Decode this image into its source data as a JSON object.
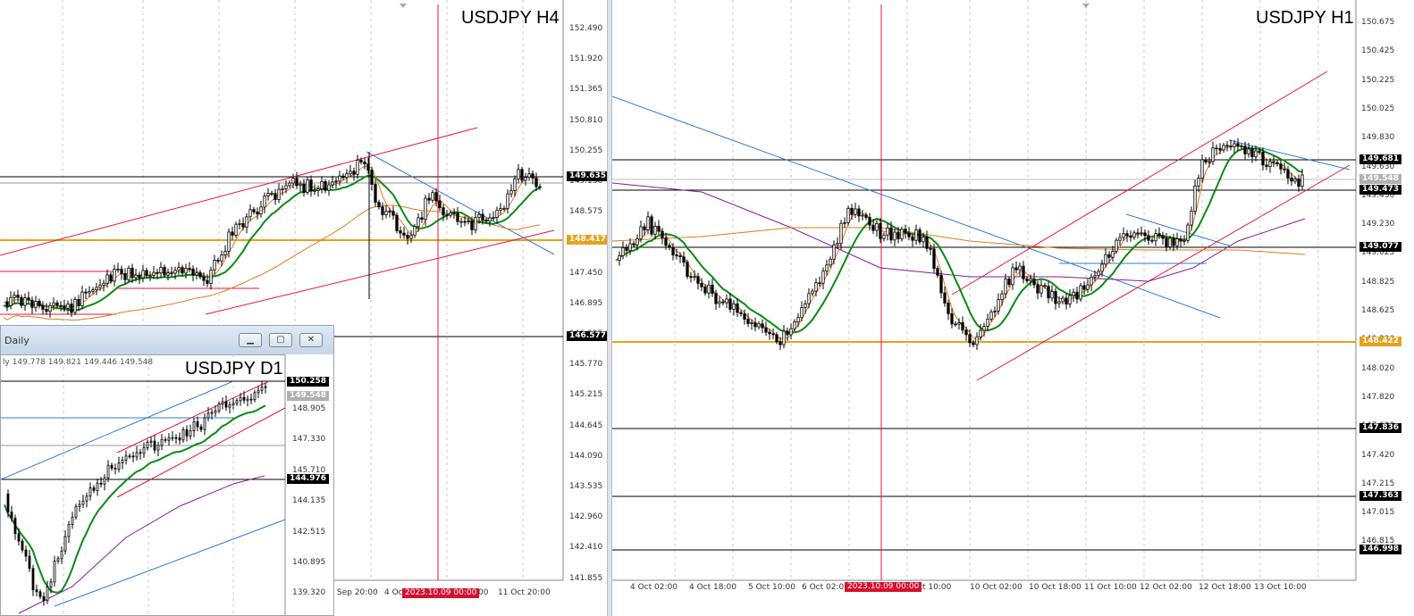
{
  "left_chart": {
    "title": "USDJPY H4",
    "price_labels": [
      "152.490",
      "151.920",
      "151.365",
      "150.810",
      "150.255",
      "149.130",
      "148.575",
      "148.000",
      "147.450",
      "146.895",
      "146.325",
      "145.770",
      "145.215",
      "144.645",
      "144.090",
      "143.535",
      "142.960",
      "142.410",
      "141.855"
    ],
    "tags": [
      {
        "text": "149.635",
        "style": "black"
      },
      {
        "text": "148.417",
        "style": "gold"
      },
      {
        "text": "146.577",
        "style": "black"
      }
    ],
    "time_labels": [
      "Sep 20:00",
      "4 Oct",
      "00",
      "11 Oct 20:00"
    ],
    "cursor_tag": "2023.10.09 00:00"
  },
  "right_chart": {
    "title": "USDJPY H1",
    "price_labels": [
      "150.675",
      "150.425",
      "150.225",
      "150.025",
      "149.830",
      "149.630",
      "149.430",
      "149.230",
      "149.025",
      "148.825",
      "148.625",
      "148.220",
      "148.020",
      "147.820",
      "147.620",
      "147.420",
      "147.215",
      "147.015",
      "146.815"
    ],
    "tags": [
      {
        "text": "149.681",
        "style": "black"
      },
      {
        "text": "149.548",
        "style": "grey"
      },
      {
        "text": "149.473",
        "style": "black"
      },
      {
        "text": "149.077",
        "style": "black"
      },
      {
        "text": "148.422",
        "style": "gold"
      },
      {
        "text": "147.836",
        "style": "black"
      },
      {
        "text": "147.363",
        "style": "black"
      },
      {
        "text": "146.998",
        "style": "black"
      }
    ],
    "time_labels": [
      "4 Oct 02:00",
      "4 Oct 18:00",
      "5 Oct 10:00",
      "6 Oct 02:00",
      "Oct 10:00",
      "10 Oct 02:00",
      "10 Oct 18:00",
      "11 Oct 10:00",
      "12 Oct 02:00",
      "12 Oct 18:00",
      "13 Oct 10:00"
    ],
    "cursor_tag": "2023.10.09 00:00"
  },
  "daily_window": {
    "caption": "Daily",
    "ohlc": "149.778 149.821 149.446 149.548",
    "ohlc_prefix": "ly",
    "title": "USDJPY D1",
    "price_labels": [
      "148.905",
      "147.330",
      "145.710",
      "144.135",
      "142.515",
      "140.895",
      "139.320"
    ],
    "tags": [
      {
        "text": "150.258",
        "style": "black"
      },
      {
        "text": "149.548",
        "style": "grey"
      },
      {
        "text": "144.976",
        "style": "black"
      }
    ],
    "buttons": {
      "minimize": "▁",
      "restore": "▢",
      "close": "✕"
    }
  },
  "colors": {
    "cursor_red": "#e8143c",
    "channel_red": "#e8143c",
    "ma_green": "#0a8a14",
    "ma_orange": "#e07b1a",
    "ma_purple": "#8a1a9a",
    "trend_blue": "#2e7bd6",
    "gold_line": "#e6a21b"
  }
}
